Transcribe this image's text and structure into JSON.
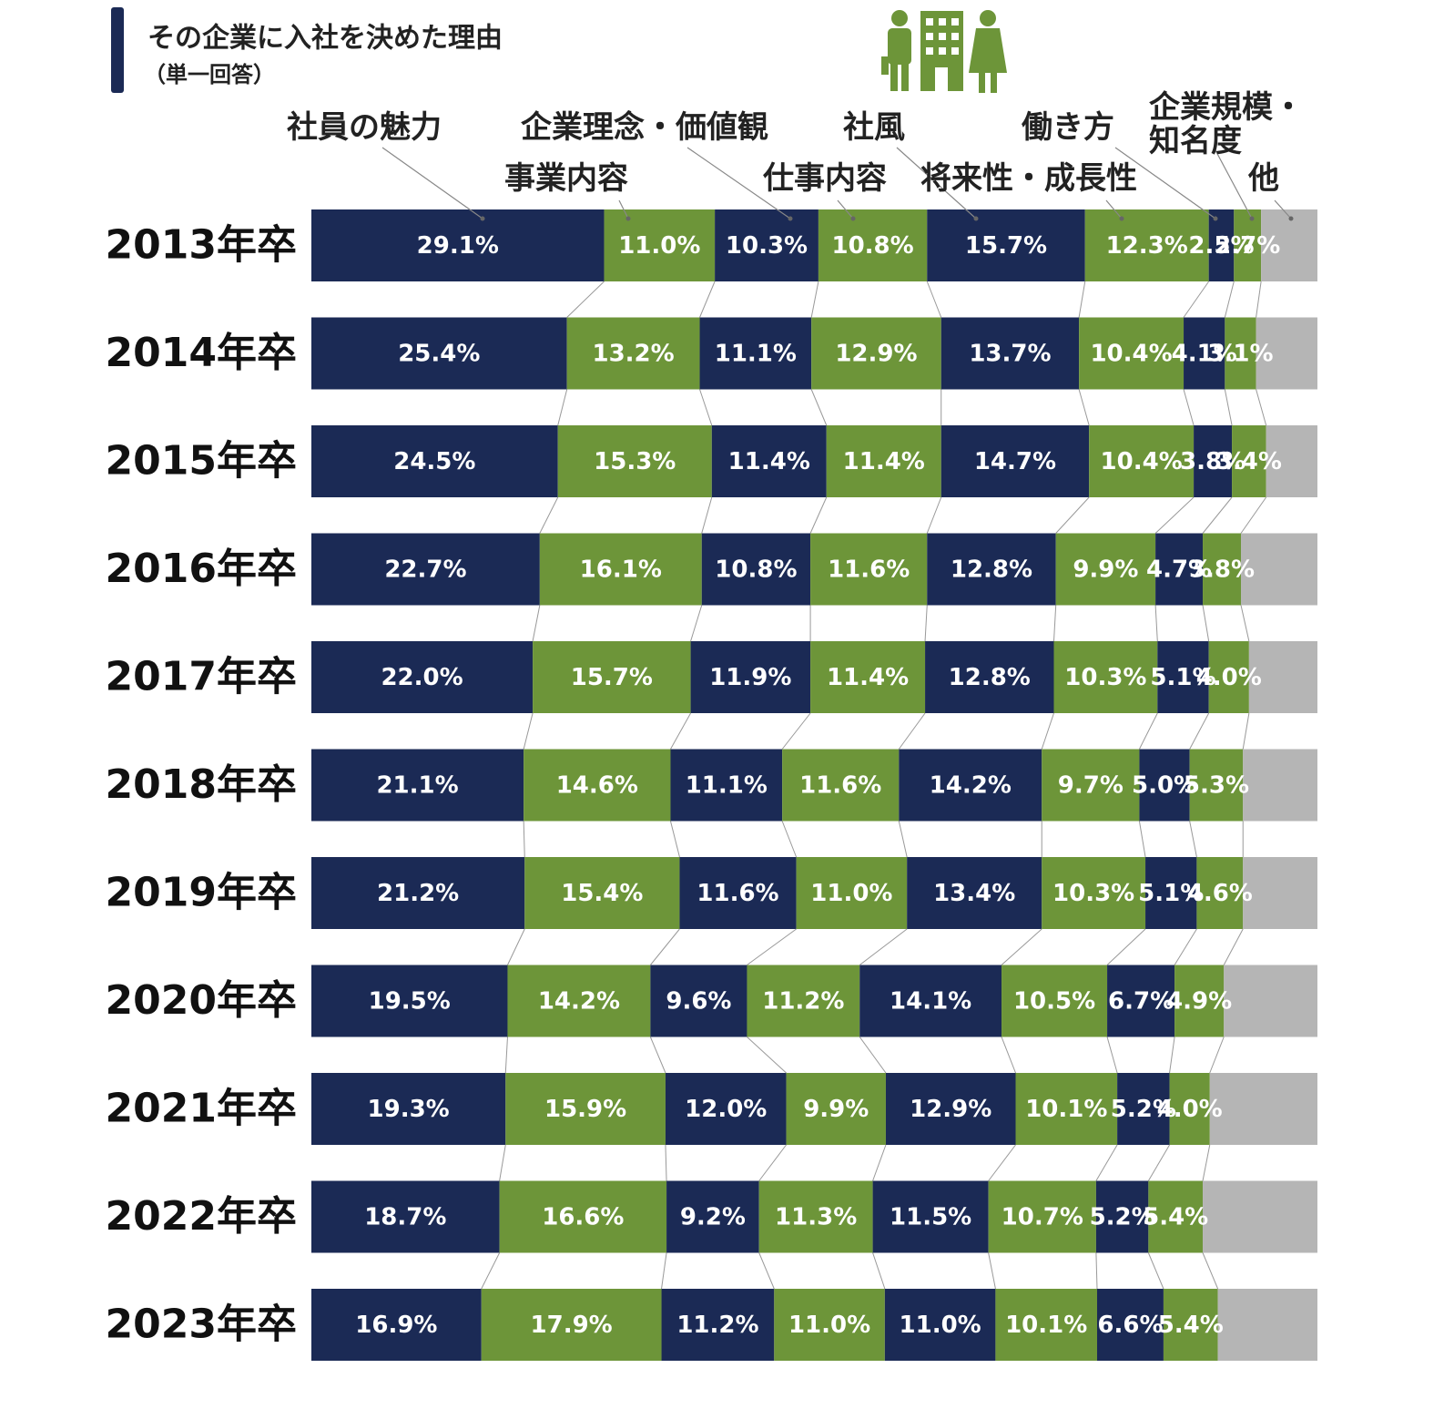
{
  "chart_data": {
    "type": "stacked-bar-horizontal",
    "title": "その企業に入社を決めた理由",
    "subtitle": "（単一回答）",
    "categories": [
      "2013年卒",
      "2014年卒",
      "2015年卒",
      "2016年卒",
      "2017年卒",
      "2018年卒",
      "2019年卒",
      "2020年卒",
      "2021年卒",
      "2022年卒",
      "2023年卒"
    ],
    "xlim": [
      0,
      100
    ],
    "series": [
      {
        "name": "社員の魅力",
        "color": "#1b2a55",
        "values": [
          29.1,
          25.4,
          24.5,
          22.7,
          22.0,
          21.1,
          21.2,
          19.5,
          19.3,
          18.7,
          16.9
        ],
        "value_labels": [
          "29.1%",
          "25.4%",
          "24.5%",
          "22.7%",
          "22.0%",
          "21.1%",
          "21.2%",
          "19.5%",
          "19.3%",
          "18.7%",
          "16.9%"
        ]
      },
      {
        "name": "事業内容",
        "color": "#6d9539",
        "values": [
          11.0,
          13.2,
          15.3,
          16.1,
          15.7,
          14.6,
          15.4,
          14.2,
          15.9,
          16.6,
          17.9
        ],
        "value_labels": [
          "11.0%",
          "13.2%",
          "15.3%",
          "16.1%",
          "15.7%",
          "14.6%",
          "15.4%",
          "14.2%",
          "15.9%",
          "16.6%",
          "17.9%"
        ]
      },
      {
        "name": "企業理念・価値観",
        "color": "#1b2a55",
        "values": [
          10.3,
          11.1,
          11.4,
          10.8,
          11.9,
          11.1,
          11.6,
          9.6,
          12.0,
          9.2,
          11.2
        ],
        "value_labels": [
          "10.3%",
          "11.1%",
          "11.4%",
          "10.8%",
          "11.9%",
          "11.1%",
          "11.6%",
          "9.6%",
          "12.0%",
          "9.2%",
          "11.2%"
        ]
      },
      {
        "name": "仕事内容",
        "color": "#6d9539",
        "values": [
          10.8,
          12.9,
          11.4,
          11.6,
          11.4,
          11.6,
          11.0,
          11.2,
          9.9,
          11.3,
          11.0
        ],
        "value_labels": [
          "10.8%",
          "12.9%",
          "11.4%",
          "11.6%",
          "11.4%",
          "11.6%",
          "11.0%",
          "11.2%",
          "9.9%",
          "11.3%",
          "11.0%"
        ]
      },
      {
        "name": "社風",
        "color": "#1b2a55",
        "values": [
          15.7,
          13.7,
          14.7,
          12.8,
          12.8,
          14.2,
          13.4,
          14.1,
          12.9,
          11.5,
          11.0
        ],
        "value_labels": [
          "15.7%",
          "13.7%",
          "14.7%",
          "12.8%",
          "12.8%",
          "14.2%",
          "13.4%",
          "14.1%",
          "12.9%",
          "11.5%",
          "11.0%"
        ]
      },
      {
        "name": "将来性・成長性",
        "color": "#6d9539",
        "values": [
          12.3,
          10.4,
          10.4,
          9.9,
          10.3,
          9.7,
          10.3,
          10.5,
          10.1,
          10.7,
          10.1
        ],
        "value_labels": [
          "12.3%",
          "10.4%",
          "10.4%",
          "9.9%",
          "10.3%",
          "9.7%",
          "10.3%",
          "10.5%",
          "10.1%",
          "10.7%",
          "10.1%"
        ]
      },
      {
        "name": "働き方",
        "color": "#1b2a55",
        "values": [
          2.5,
          4.1,
          3.8,
          4.7,
          5.1,
          5.0,
          5.1,
          6.7,
          5.2,
          5.2,
          6.6
        ],
        "value_labels": [
          "2.5%",
          "4.1%",
          "3.8%",
          "4.7%",
          "5.1%",
          "5.0%",
          "5.1%",
          "6.7%",
          "5.2%",
          "5.2%",
          "6.6%"
        ]
      },
      {
        "name": "企業規模・知名度",
        "color": "#6d9539",
        "values": [
          2.7,
          3.1,
          3.4,
          3.8,
          4.0,
          5.3,
          4.6,
          4.9,
          4.0,
          5.4,
          5.4
        ],
        "value_labels": [
          "2.7%",
          "3.1%",
          "3.4%",
          "3.8%",
          "4.0%",
          "5.3%",
          "4.6%",
          "4.9%",
          "4.0%",
          "5.4%",
          "5.4%"
        ]
      },
      {
        "name": "他",
        "color": "#b5b5b5",
        "values": [
          5.6,
          6.1,
          5.1,
          7.6,
          6.8,
          7.4,
          7.4,
          9.3,
          10.7,
          11.4,
          9.9
        ]
      }
    ]
  }
}
